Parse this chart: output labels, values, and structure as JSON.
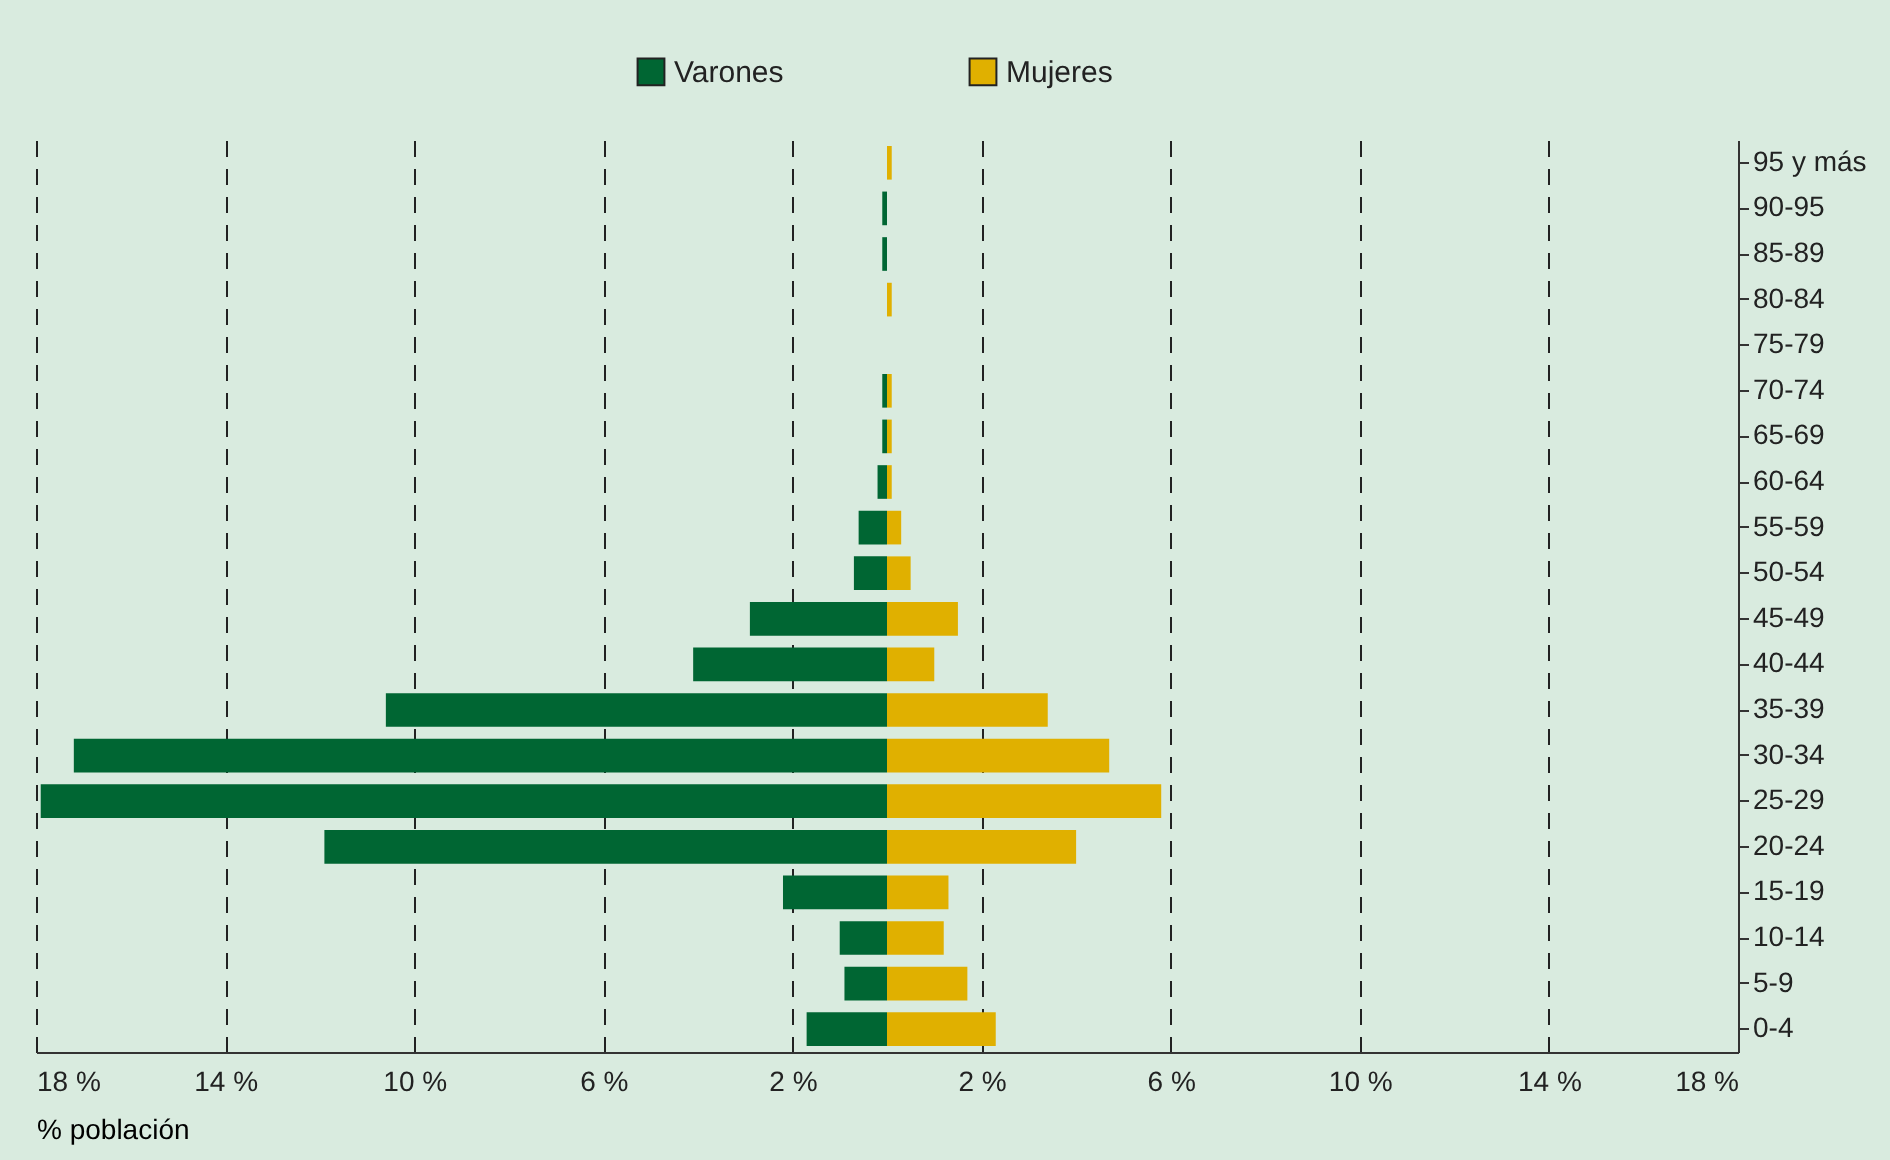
{
  "chart_data": {
    "type": "bar",
    "orientation": "horizontal",
    "xlabel": "% población",
    "categories": [
      "95 y más",
      "90-95",
      "85-89",
      "80-84",
      "75-79",
      "70-74",
      "65-69",
      "60-64",
      "55-59",
      "50-54",
      "45-49",
      "40-44",
      "35-39",
      "30-34",
      "25-29",
      "20-24",
      "15-19",
      "10-14",
      "5-9",
      "0-4"
    ],
    "series": [
      {
        "name": "Varones",
        "color": "#006633",
        "values": [
          0,
          -0.1,
          -0.1,
          0,
          0,
          -0.1,
          -0.1,
          -0.2,
          -0.6,
          -0.7,
          -2.9,
          -4.1,
          -10.6,
          -17.2,
          -17.9,
          -11.9,
          -2.2,
          -1.0,
          -0.9,
          -1.7
        ]
      },
      {
        "name": "Mujeres",
        "color": "#e0b000",
        "values": [
          0.1,
          0,
          0,
          0.1,
          0,
          0.1,
          0.1,
          0.1,
          0.3,
          0.5,
          1.5,
          1.0,
          3.4,
          4.7,
          5.8,
          4.0,
          1.3,
          1.2,
          1.7,
          2.3
        ]
      }
    ],
    "xlim": [
      -18,
      18
    ],
    "xticks": [
      {
        "value": -18,
        "label": "18 %"
      },
      {
        "value": -14,
        "label": "14 %"
      },
      {
        "value": -10,
        "label": "10 %"
      },
      {
        "value": -6,
        "label": "6 %"
      },
      {
        "value": -2,
        "label": "2 %"
      },
      {
        "value": 2,
        "label": "2 %"
      },
      {
        "value": 6,
        "label": "6 %"
      },
      {
        "value": 10,
        "label": "10 %"
      },
      {
        "value": 14,
        "label": "14 %"
      },
      {
        "value": 18,
        "label": "18 %"
      }
    ],
    "grid": "x",
    "legend": "top",
    "stacked": true
  }
}
